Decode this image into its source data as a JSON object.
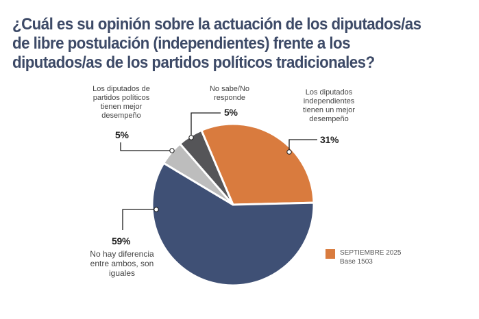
{
  "title_lines": [
    "¿Cuál es su opinión sobre la actuación de los diputados/as",
    "de libre postulación (independientes) frente a los",
    "diputados/as de los partidos políticos tradicionales?"
  ],
  "chart_data": {
    "type": "pie",
    "title": "¿Cuál es su opinión sobre la actuación de los diputados/as de libre postulación (independientes) frente a los diputados/as de los partidos políticos tradicionales?",
    "start_angle_deg": -23,
    "direction": "clockwise",
    "slices": [
      {
        "key": "independientes",
        "label": "Los diputados independientes tienen un mejor desempeño",
        "value": 31,
        "value_label": "31%",
        "color": "#d97b3e"
      },
      {
        "key": "iguales",
        "label": "No hay diferencia entre ambos, son iguales",
        "value": 59,
        "value_label": "59%",
        "color": "#3f5075"
      },
      {
        "key": "partidos",
        "label": "Los diputados de partidos políticos tienen mejor desempeño",
        "value": 5,
        "value_label": "5%",
        "color": "#bdbdbd"
      },
      {
        "key": "nosabe",
        "label": "No sabe/No responde",
        "value": 5,
        "value_label": "5%",
        "color": "#555558"
      }
    ],
    "legend": {
      "position": "bottom-right",
      "entries": [
        {
          "label": "SEPTIEMBRE 2025",
          "color": "#d97b3e"
        }
      ],
      "note": "Base 1503"
    }
  },
  "labels": {
    "partidos": {
      "lines": [
        "Los diputados de",
        "partidos políticos",
        "tienen mejor",
        "desempeño"
      ],
      "pct": "5%"
    },
    "nosabe": {
      "lines": [
        "No sabe/No",
        "responde"
      ],
      "pct": "5%"
    },
    "independientes": {
      "lines": [
        "Los diputados",
        "independientes",
        "tienen un mejor",
        "desempeño"
      ],
      "pct": "31%"
    },
    "iguales": {
      "lines": [
        "No hay diferencia",
        "entre ambos, son",
        "iguales"
      ],
      "pct": "59%"
    }
  },
  "legend": {
    "series": "SEPTIEMBRE 2025",
    "base": "Base 1503",
    "color": "#d97b3e"
  }
}
